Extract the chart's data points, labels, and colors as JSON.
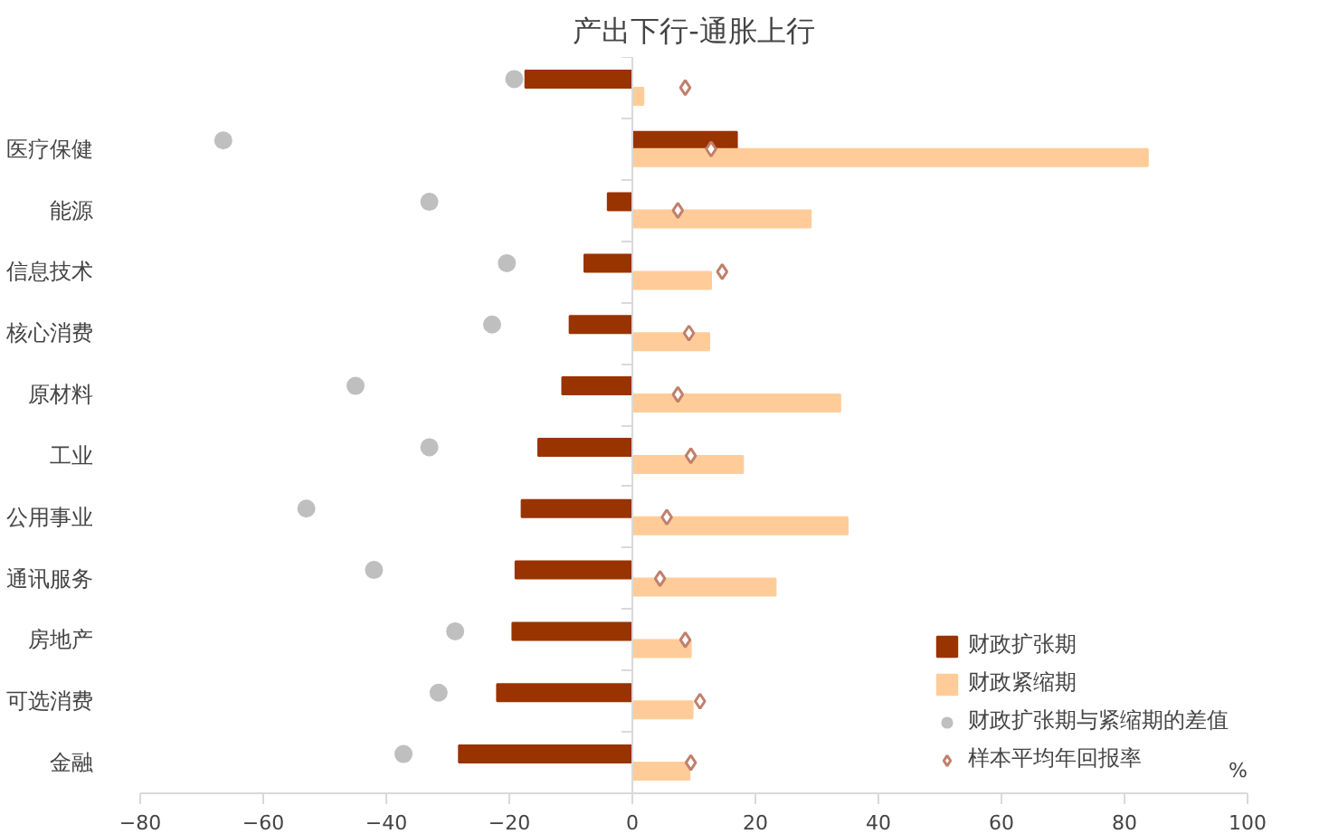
{
  "chart_data": {
    "type": "bar",
    "orientation": "horizontal",
    "title": "产出下行-通胀上行",
    "xlabel": "%",
    "categories": [
      null,
      "医疗保健",
      "能源",
      "信息技术",
      "核心消费",
      "原材料",
      "工业",
      "公用事业",
      "通讯服务",
      "房地产",
      "可选消费",
      "金融"
    ],
    "series": [
      {
        "name": "财政扩张期",
        "color": "#993300",
        "values": [
          -17.4,
          17,
          -4,
          -7.8,
          -10.2,
          -11.4,
          -15.3,
          -18,
          -19,
          -19.5,
          -22,
          -28.2
        ]
      },
      {
        "name": "财政紧缩期",
        "color": "#ffcc99",
        "values": [
          1.8,
          83.8,
          29,
          12.8,
          12.5,
          33.8,
          18,
          35,
          23.3,
          9.5,
          9.8,
          9.3
        ]
      },
      {
        "name": "财政扩张期与紧缩期的差值",
        "type": "scatter",
        "marker": "circle",
        "color": "#bfbfbf",
        "values": [
          -19.2,
          -66.5,
          -33,
          -20.4,
          -22.8,
          -45,
          -33,
          -53,
          -42,
          -28.8,
          -31.5,
          -37.2
        ]
      },
      {
        "name": "样本平均年回报率",
        "type": "scatter",
        "marker": "diamond",
        "color": "#c0806c",
        "values": [
          8.6,
          12.8,
          7.4,
          14.6,
          9.2,
          7.4,
          9.5,
          5.6,
          4.5,
          8.6,
          11,
          9.5
        ]
      }
    ],
    "xlim": [
      -80,
      100
    ],
    "xticks": [
      -80,
      -60,
      -40,
      -20,
      0,
      20,
      40,
      60,
      80,
      100
    ],
    "legend": "bottom right"
  }
}
